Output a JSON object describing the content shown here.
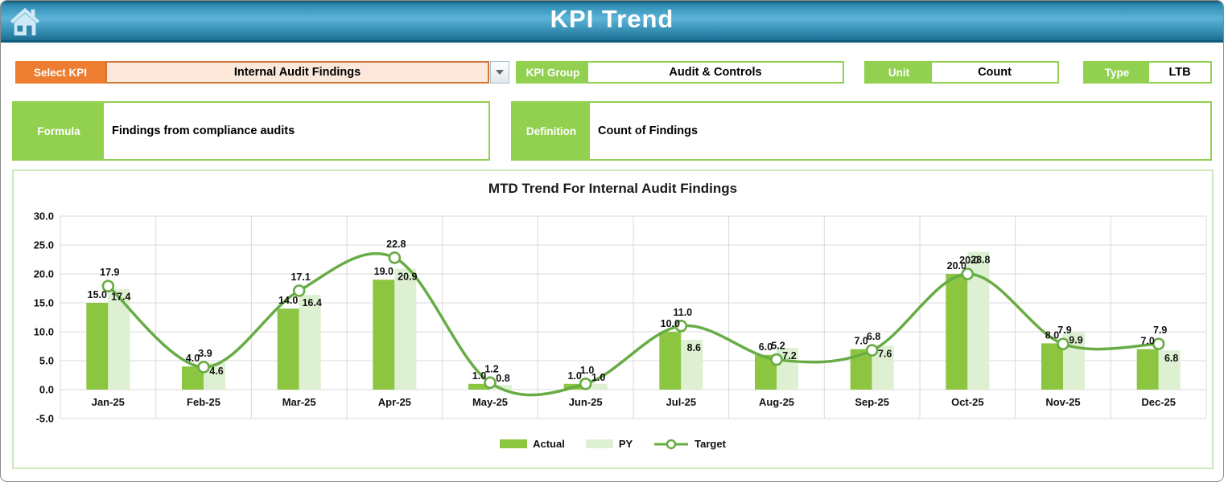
{
  "header": {
    "title": "KPI Trend"
  },
  "controls": {
    "select_kpi": {
      "label": "Select KPI",
      "value": "Internal Audit Findings"
    },
    "kpi_group": {
      "label": "KPI Group",
      "value": "Audit & Controls"
    },
    "unit": {
      "label": "Unit",
      "value": "Count"
    },
    "type": {
      "label": "Type",
      "value": "LTB"
    }
  },
  "info": {
    "formula": {
      "label": "Formula",
      "value": "Findings from compliance audits"
    },
    "definition": {
      "label": "Definition",
      "value": "Count of Findings"
    }
  },
  "colors": {
    "accent_orange": "#ED7D31",
    "accent_green": "#92D050",
    "actual_bar": "#8CC540",
    "py_bar": "#DEF0D2",
    "target_line": "#67AC44",
    "gridline": "#D9D9D9",
    "header_blue": "#3a93b8"
  },
  "chart_data": {
    "type": "bar",
    "subtype": "grouped-bars-with-smooth-line",
    "title": "MTD Trend For Internal Audit Findings",
    "categories": [
      "Jan-25",
      "Feb-25",
      "Mar-25",
      "Apr-25",
      "May-25",
      "Jun-25",
      "Jul-25",
      "Aug-25",
      "Sep-25",
      "Oct-25",
      "Nov-25",
      "Dec-25"
    ],
    "series": [
      {
        "name": "Actual",
        "type": "bar",
        "color": "#8CC540",
        "values": [
          15.0,
          4.0,
          14.0,
          19.0,
          1.0,
          1.0,
          10.0,
          6.0,
          7.0,
          20.0,
          8.0,
          7.0
        ]
      },
      {
        "name": "PY",
        "type": "bar",
        "color": "#DEF0D2",
        "values": [
          17.4,
          4.6,
          16.4,
          20.9,
          0.8,
          1.0,
          8.6,
          7.2,
          7.6,
          23.8,
          9.9,
          6.8
        ]
      },
      {
        "name": "Target",
        "type": "line",
        "color": "#67AC44",
        "values": [
          17.9,
          3.9,
          17.1,
          22.8,
          1.2,
          1.0,
          11.0,
          5.2,
          6.8,
          20.0,
          7.9,
          7.9
        ]
      }
    ],
    "ylim": [
      -5,
      30
    ],
    "y_ticks": [
      30.0,
      25.0,
      20.0,
      15.0,
      10.0,
      5.0,
      0.0,
      -5.0
    ],
    "value_format": "0.0",
    "grid": true,
    "legend_position": "bottom",
    "xlabel": "",
    "ylabel": ""
  }
}
